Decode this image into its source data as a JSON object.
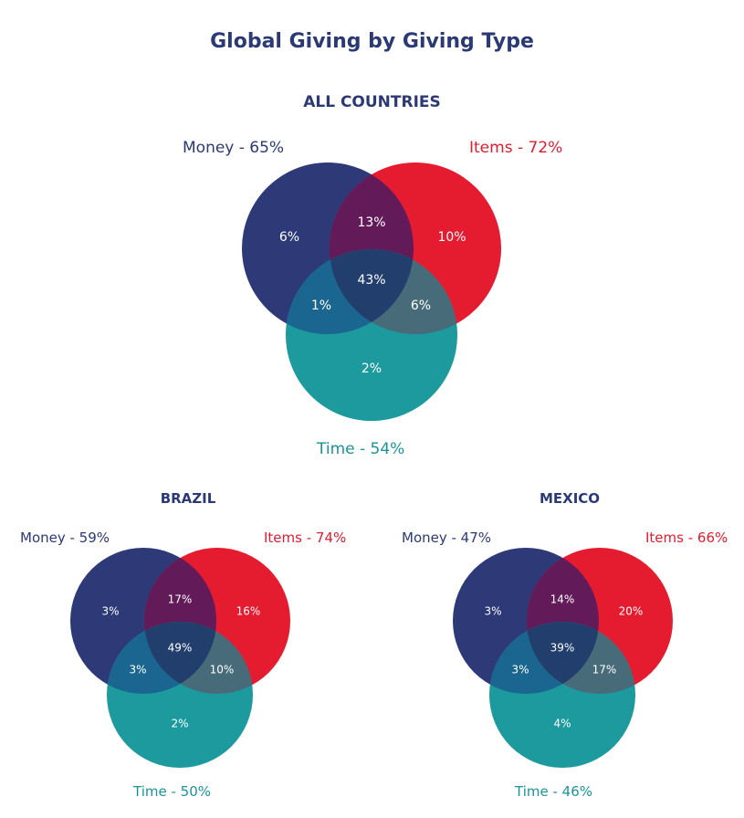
{
  "title": "Global Giving by Giving Type",
  "colors": {
    "money": "#2e3978",
    "items": "#e51b30",
    "time": "#1c9a9e"
  },
  "venns": [
    {
      "heading": "ALL COUNTRIES",
      "money_label": "Money - 65%",
      "items_label": "Items - 72%",
      "time_label": "Time - 54%",
      "regions": {
        "money_only": "6%",
        "items_only": "10%",
        "time_only": "2%",
        "money_items": "13%",
        "money_time": "1%",
        "items_time": "6%",
        "all": "43%"
      }
    },
    {
      "heading": "BRAZIL",
      "money_label": "Money - 59%",
      "items_label": "Items - 74%",
      "time_label": "Time - 50%",
      "regions": {
        "money_only": "3%",
        "items_only": "16%",
        "time_only": "2%",
        "money_items": "17%",
        "money_time": "3%",
        "items_time": "10%",
        "all": "49%"
      }
    },
    {
      "heading": "MEXICO",
      "money_label": "Money - 47%",
      "items_label": "Items - 66%",
      "time_label": "Time - 46%",
      "regions": {
        "money_only": "3%",
        "items_only": "20%",
        "time_only": "4%",
        "money_items": "14%",
        "money_time": "3%",
        "items_time": "17%",
        "all": "39%"
      }
    }
  ]
}
